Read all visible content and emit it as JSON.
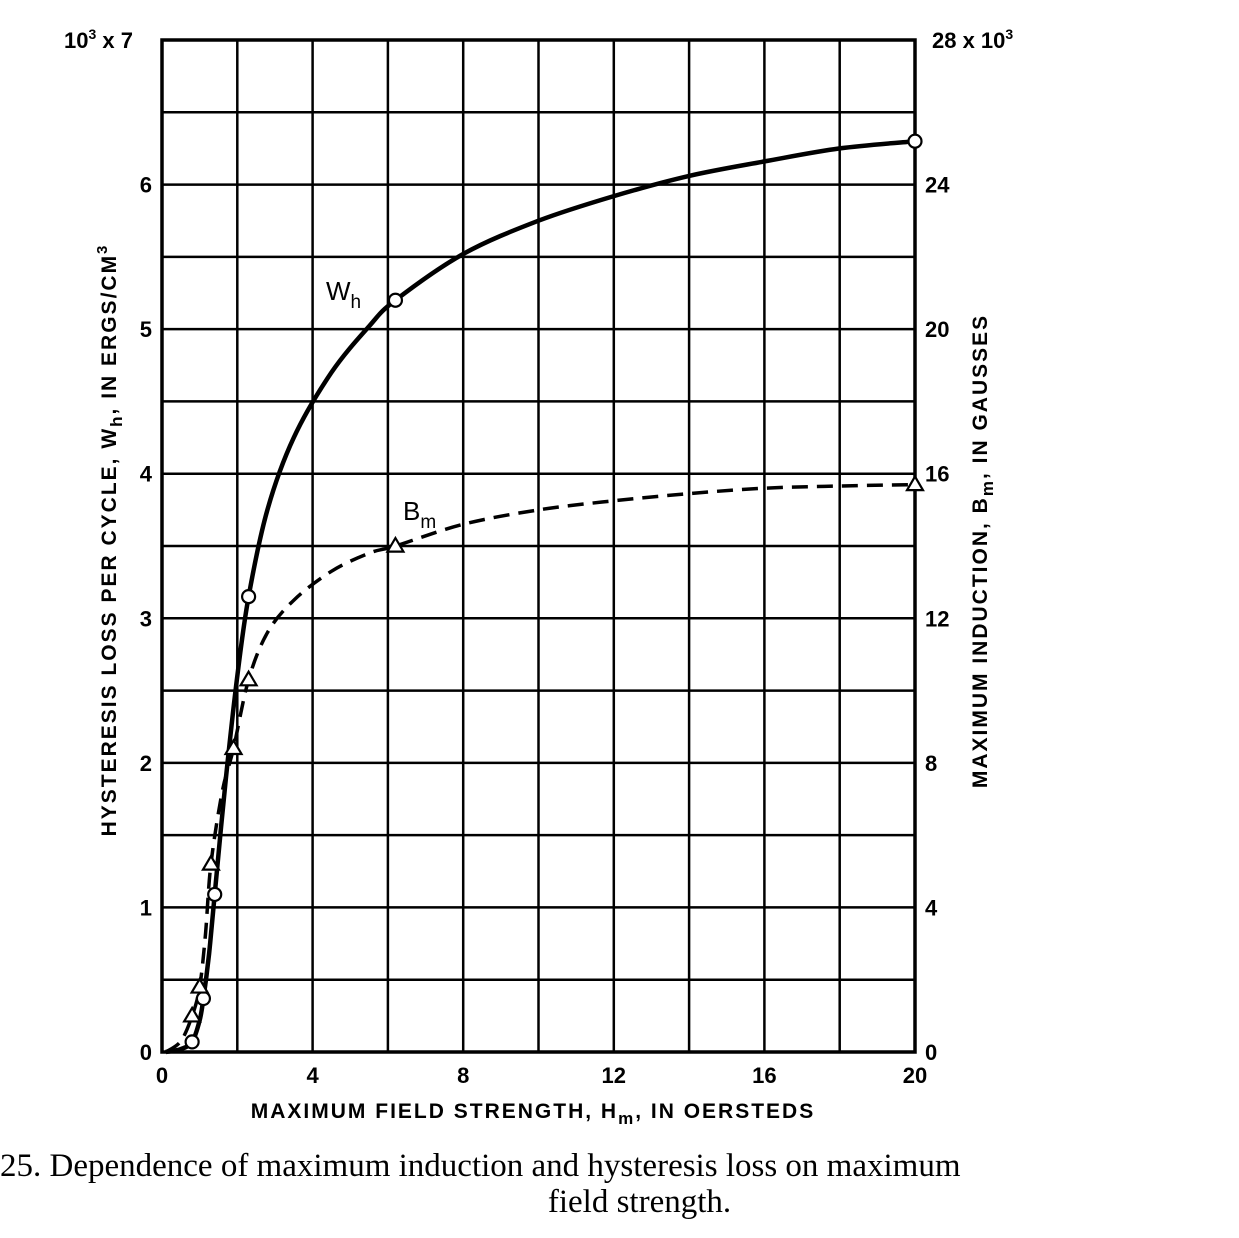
{
  "chart_data": {
    "type": "line",
    "title": "",
    "caption": {
      "line1": "25.  Dependence of maximum induction and hysteresis loss on maximum",
      "line2": "field strength."
    },
    "xlabel": "MAXIMUM FIELD STRENGTH, H",
    "xlabel_sub": "m",
    "xlabel_tail": ", IN OERSTEDS",
    "ylabel_left": "HYSTERESIS LOSS PER CYCLE, W",
    "ylabel_left_sub": "h",
    "ylabel_left_tail": ", IN ERGS/CM",
    "ylabel_left_sup": "3",
    "ylabel_right": "MAXIMUM INDUCTION, B",
    "ylabel_right_sub": "m",
    "ylabel_right_tail": ", IN GAUSSES",
    "left_multiplier": {
      "base": "10",
      "exp": "3",
      "tail": " x 7"
    },
    "right_multiplier": {
      "head": "28 x 10",
      "exp": "3"
    },
    "xlim": [
      0,
      20
    ],
    "ylim_left": [
      0,
      7
    ],
    "ylim_right": [
      0,
      28
    ],
    "x_ticks": [
      "0",
      "4",
      "8",
      "12",
      "16",
      "20"
    ],
    "x_tick_values": [
      0,
      4,
      8,
      12,
      16,
      20
    ],
    "left_ticks": [
      "0",
      "1",
      "2",
      "3",
      "4",
      "5",
      "6"
    ],
    "left_tick_values": [
      0,
      1,
      2,
      3,
      4,
      5,
      6
    ],
    "right_ticks": [
      "0",
      "4",
      "8",
      "12",
      "16",
      "20",
      "24"
    ],
    "right_tick_values": [
      0,
      4,
      8,
      12,
      16,
      20,
      24
    ],
    "grid": true,
    "series": [
      {
        "name": "W",
        "name_sub": "h",
        "axis": "left",
        "style": "solid",
        "marker": "circle",
        "points": [
          [
            0.8,
            0.07
          ],
          [
            1.1,
            0.37
          ],
          [
            1.4,
            1.09
          ],
          [
            2.3,
            3.15
          ],
          [
            6.2,
            5.2
          ],
          [
            20,
            6.3
          ]
        ],
        "curve": [
          [
            0.1,
            0.0
          ],
          [
            0.5,
            0.02
          ],
          [
            0.8,
            0.07
          ],
          [
            1.0,
            0.22
          ],
          [
            1.1,
            0.37
          ],
          [
            1.25,
            0.68
          ],
          [
            1.4,
            1.09
          ],
          [
            1.7,
            1.9
          ],
          [
            2.0,
            2.6
          ],
          [
            2.3,
            3.15
          ],
          [
            2.8,
            3.75
          ],
          [
            3.5,
            4.25
          ],
          [
            4.5,
            4.7
          ],
          [
            5.5,
            5.02
          ],
          [
            6.2,
            5.2
          ],
          [
            8,
            5.52
          ],
          [
            10,
            5.75
          ],
          [
            12,
            5.92
          ],
          [
            14,
            6.06
          ],
          [
            16,
            6.16
          ],
          [
            18,
            6.25
          ],
          [
            20,
            6.3
          ]
        ]
      },
      {
        "name": "B",
        "name_sub": "m",
        "axis": "right",
        "style": "dashed",
        "marker": "triangle",
        "points": [
          [
            0.8,
            1.0
          ],
          [
            1.0,
            1.8
          ],
          [
            1.3,
            5.2
          ],
          [
            1.9,
            8.4
          ],
          [
            2.3,
            10.3
          ],
          [
            6.2,
            14.0
          ],
          [
            20,
            15.7
          ]
        ],
        "curve": [
          [
            0.1,
            0.0
          ],
          [
            0.5,
            0.3
          ],
          [
            0.8,
            1.0
          ],
          [
            1.0,
            1.8
          ],
          [
            1.15,
            3.2
          ],
          [
            1.3,
            5.2
          ],
          [
            1.6,
            7.2
          ],
          [
            1.9,
            8.4
          ],
          [
            2.3,
            10.3
          ],
          [
            2.8,
            11.6
          ],
          [
            3.5,
            12.5
          ],
          [
            4.5,
            13.3
          ],
          [
            5.5,
            13.8
          ],
          [
            6.2,
            14.0
          ],
          [
            8,
            14.6
          ],
          [
            10,
            15.0
          ],
          [
            12,
            15.25
          ],
          [
            14,
            15.45
          ],
          [
            16,
            15.6
          ],
          [
            18,
            15.66
          ],
          [
            20,
            15.7
          ]
        ]
      }
    ],
    "series_label_positions": "near data points at H=6"
  }
}
